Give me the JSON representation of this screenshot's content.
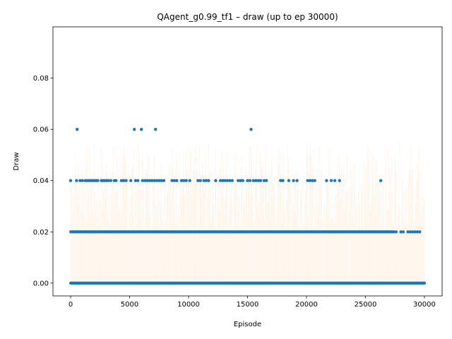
{
  "chart_data": {
    "type": "scatter",
    "title": "QAgent_g0.99_tf1 – draw (up to ep 30000)",
    "xlabel": "Episode",
    "ylabel": "Draw",
    "xlim": [
      -1500,
      31500
    ],
    "ylim": [
      -0.005,
      0.1
    ],
    "xticks": [
      0,
      5000,
      10000,
      15000,
      20000,
      25000,
      30000
    ],
    "xtick_labels": [
      "0",
      "5000",
      "10000",
      "15000",
      "20000",
      "25000",
      "30000"
    ],
    "yticks": [
      0.0,
      0.02,
      0.04,
      0.06,
      0.08
    ],
    "ytick_labels": [
      "0.00",
      "0.02",
      "0.04",
      "0.06",
      "0.08"
    ],
    "grid": false,
    "colors": {
      "points": "#1f77b4",
      "background_bars": "#ff7f0e"
    },
    "series": [
      {
        "values_note_free": true,
        "points": [
          {
            "x": 550,
            "y": 0.06
          },
          {
            "x": 5400,
            "y": 0.06
          },
          {
            "x": 6000,
            "y": 0.06
          },
          {
            "x": 7200,
            "y": 0.06
          },
          {
            "x": 15300,
            "y": 0.06
          },
          {
            "x": 0,
            "y": 0.04
          },
          {
            "x": 500,
            "y": 0.04
          },
          {
            "x": 800,
            "y": 0.04
          },
          {
            "x": 1000,
            "y": 0.04
          },
          {
            "x": 1250,
            "y": 0.04
          },
          {
            "x": 1400,
            "y": 0.04
          },
          {
            "x": 1550,
            "y": 0.04
          },
          {
            "x": 1700,
            "y": 0.04
          },
          {
            "x": 1850,
            "y": 0.04
          },
          {
            "x": 2000,
            "y": 0.04
          },
          {
            "x": 2150,
            "y": 0.04
          },
          {
            "x": 2300,
            "y": 0.04
          },
          {
            "x": 2600,
            "y": 0.04
          },
          {
            "x": 2750,
            "y": 0.04
          },
          {
            "x": 2900,
            "y": 0.04
          },
          {
            "x": 3050,
            "y": 0.04
          },
          {
            "x": 3200,
            "y": 0.04
          },
          {
            "x": 3400,
            "y": 0.04
          },
          {
            "x": 3700,
            "y": 0.04
          },
          {
            "x": 3850,
            "y": 0.04
          },
          {
            "x": 4300,
            "y": 0.04
          },
          {
            "x": 4500,
            "y": 0.04
          },
          {
            "x": 4700,
            "y": 0.04
          },
          {
            "x": 5100,
            "y": 0.04
          },
          {
            "x": 5500,
            "y": 0.04
          },
          {
            "x": 5700,
            "y": 0.04
          },
          {
            "x": 6100,
            "y": 0.04
          },
          {
            "x": 6300,
            "y": 0.04
          },
          {
            "x": 6500,
            "y": 0.04
          },
          {
            "x": 6700,
            "y": 0.04
          },
          {
            "x": 6900,
            "y": 0.04
          },
          {
            "x": 7100,
            "y": 0.04
          },
          {
            "x": 7300,
            "y": 0.04
          },
          {
            "x": 7500,
            "y": 0.04
          },
          {
            "x": 7700,
            "y": 0.04
          },
          {
            "x": 7900,
            "y": 0.04
          },
          {
            "x": 8600,
            "y": 0.04
          },
          {
            "x": 8800,
            "y": 0.04
          },
          {
            "x": 9000,
            "y": 0.04
          },
          {
            "x": 9400,
            "y": 0.04
          },
          {
            "x": 9600,
            "y": 0.04
          },
          {
            "x": 9800,
            "y": 0.04
          },
          {
            "x": 10100,
            "y": 0.04
          },
          {
            "x": 10800,
            "y": 0.04
          },
          {
            "x": 11000,
            "y": 0.04
          },
          {
            "x": 11300,
            "y": 0.04
          },
          {
            "x": 11500,
            "y": 0.04
          },
          {
            "x": 11700,
            "y": 0.04
          },
          {
            "x": 12300,
            "y": 0.04
          },
          {
            "x": 12700,
            "y": 0.04
          },
          {
            "x": 12900,
            "y": 0.04
          },
          {
            "x": 13100,
            "y": 0.04
          },
          {
            "x": 13300,
            "y": 0.04
          },
          {
            "x": 13500,
            "y": 0.04
          },
          {
            "x": 13700,
            "y": 0.04
          },
          {
            "x": 14200,
            "y": 0.04
          },
          {
            "x": 14400,
            "y": 0.04
          },
          {
            "x": 14600,
            "y": 0.04
          },
          {
            "x": 15000,
            "y": 0.04
          },
          {
            "x": 15200,
            "y": 0.04
          },
          {
            "x": 15500,
            "y": 0.04
          },
          {
            "x": 15700,
            "y": 0.04
          },
          {
            "x": 15900,
            "y": 0.04
          },
          {
            "x": 16100,
            "y": 0.04
          },
          {
            "x": 16400,
            "y": 0.04
          },
          {
            "x": 16600,
            "y": 0.04
          },
          {
            "x": 17800,
            "y": 0.04
          },
          {
            "x": 18000,
            "y": 0.04
          },
          {
            "x": 18500,
            "y": 0.04
          },
          {
            "x": 18900,
            "y": 0.04
          },
          {
            "x": 19200,
            "y": 0.04
          },
          {
            "x": 20100,
            "y": 0.04
          },
          {
            "x": 20300,
            "y": 0.04
          },
          {
            "x": 20500,
            "y": 0.04
          },
          {
            "x": 20700,
            "y": 0.04
          },
          {
            "x": 21700,
            "y": 0.04
          },
          {
            "x": 22100,
            "y": 0.04
          },
          {
            "x": 22400,
            "y": 0.04
          },
          {
            "x": 22800,
            "y": 0.04
          },
          {
            "x": 26300,
            "y": 0.04
          },
          {
            "x": 27600,
            "y": 0.02
          },
          {
            "x": 28000,
            "y": 0.02
          },
          {
            "x": 28200,
            "y": 0.02
          },
          {
            "x": 28600,
            "y": 0.02
          },
          {
            "x": 28800,
            "y": 0.02
          },
          {
            "x": 29000,
            "y": 0.02
          },
          {
            "x": 29200,
            "y": 0.02
          },
          {
            "x": 29400,
            "y": 0.02
          },
          {
            "x": 29600,
            "y": 0.02
          }
        ],
        "dense_band": [
          {
            "y": 0.02,
            "x_start": 0,
            "x_end": 27400
          },
          {
            "y": 0.0,
            "x_start": 0,
            "x_end": 30000
          }
        ]
      }
    ]
  }
}
